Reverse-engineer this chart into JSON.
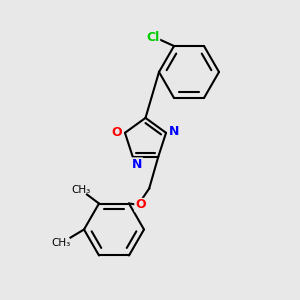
{
  "bg_color": "#e8e8e8",
  "bond_color": "#000000",
  "bond_lw": 1.5,
  "atom_colors": {
    "Cl": "#00cc00",
    "O": "#ff0000",
    "N": "#0000ff",
    "C": "#000000"
  },
  "font_size": 9
}
